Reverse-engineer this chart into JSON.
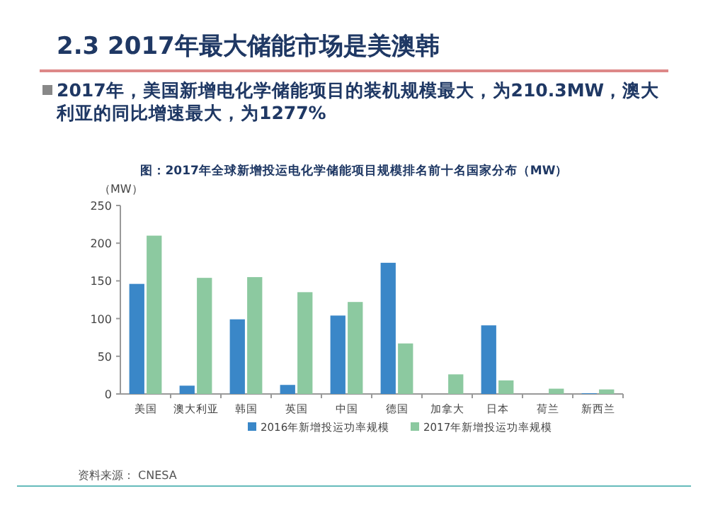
{
  "chart_data": {
    "type": "bar",
    "title": "图：2017年全球新增投运电化学储能项目规模排名前十名国家分布（MW）",
    "subtitle": "2.3 2017年最大储能市场是美澳韩",
    "annotations": [
      "2017年，美国新增电化学储能项目的装机规模最大，为210.3MW，澳大利亚的同比增速最大，为1277%",
      "资料来源： CNESA"
    ],
    "ylabel": "（MW）",
    "categories": [
      "美国",
      "澳大利亚",
      "韩国",
      "英国",
      "中国",
      "德国",
      "加拿大",
      "日本",
      "荷兰",
      "新西兰"
    ],
    "series": [
      {
        "name": "2016年新增投运功率规模",
        "color": "#3a87c8",
        "values": [
          146,
          11,
          99,
          12,
          104,
          174,
          0,
          91,
          0,
          1
        ]
      },
      {
        "name": "2017年新增投运功率规模",
        "color": "#8cc9a0",
        "values": [
          210,
          154,
          155,
          135,
          122,
          67,
          26,
          18,
          7,
          6
        ]
      }
    ],
    "ylim": [
      0,
      250
    ],
    "yticks": [
      0,
      50,
      100,
      150,
      200,
      250
    ],
    "legend": "bottom",
    "grid": false
  }
}
